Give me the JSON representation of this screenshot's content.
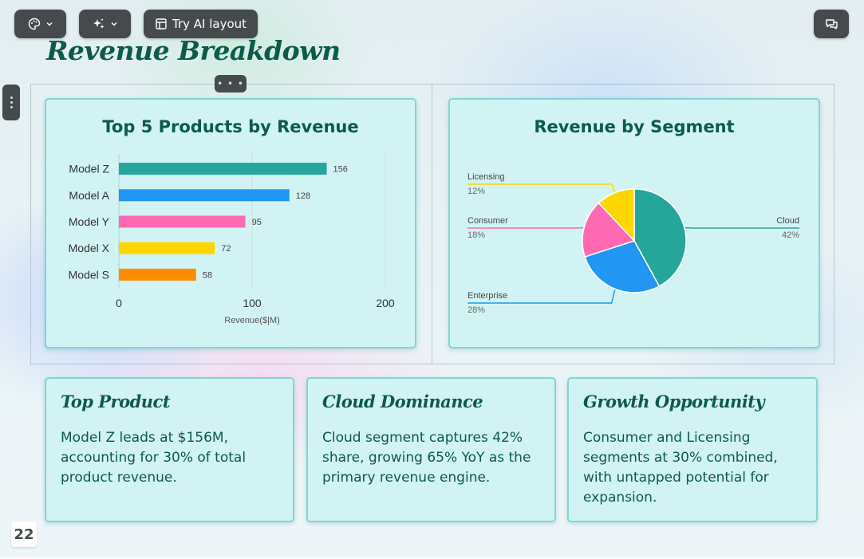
{
  "toolbar": {
    "theme_icon": "palette-icon",
    "ai_icon": "sparkles-icon",
    "layout_icon": "layout-icon",
    "layout_label": "Try AI layout",
    "comments_icon": "comments-icon"
  },
  "slide": {
    "title": "Revenue Breakdown",
    "page_number": "22"
  },
  "colors": {
    "title": "#0b5a4a",
    "card_bg": "#d2f3f3",
    "card_border": "#7fd6d3",
    "toolbar_bg": "#454a4d"
  },
  "chart_data": [
    {
      "type": "bar",
      "orientation": "horizontal",
      "title": "Top 5 Products by Revenue",
      "categories": [
        "Model Z",
        "Model A",
        "Model Y",
        "Model X",
        "Model S"
      ],
      "values": [
        156,
        128,
        95,
        72,
        58
      ],
      "colors": [
        "#26a69a",
        "#2196f3",
        "#ff69b4",
        "#ffd600",
        "#ff8c00"
      ],
      "xlabel": "Revenue($|M)",
      "xlim": [
        0,
        200
      ],
      "xticks": [
        0,
        100,
        200
      ],
      "grid": true
    },
    {
      "type": "pie",
      "title": "Revenue by Segment",
      "categories": [
        "Cloud",
        "Enterprise",
        "Consumer",
        "Licensing"
      ],
      "values": [
        42,
        28,
        18,
        12
      ],
      "labels": [
        "42%",
        "28%",
        "18%",
        "12%"
      ],
      "colors": [
        "#26a69a",
        "#2196f3",
        "#ff69b4",
        "#ffd600"
      ]
    }
  ],
  "insights": [
    {
      "title": "Top Product",
      "text": "Model Z leads at $156M, accounting for 30% of total product revenue."
    },
    {
      "title": "Cloud Dominance",
      "text": "Cloud segment captures 42% share, growing 65% YoY as the primary revenue engine."
    },
    {
      "title": "Growth Opportunity",
      "text": "Consumer and Licensing segments at 30% combined, with untapped potential for expansion."
    }
  ]
}
